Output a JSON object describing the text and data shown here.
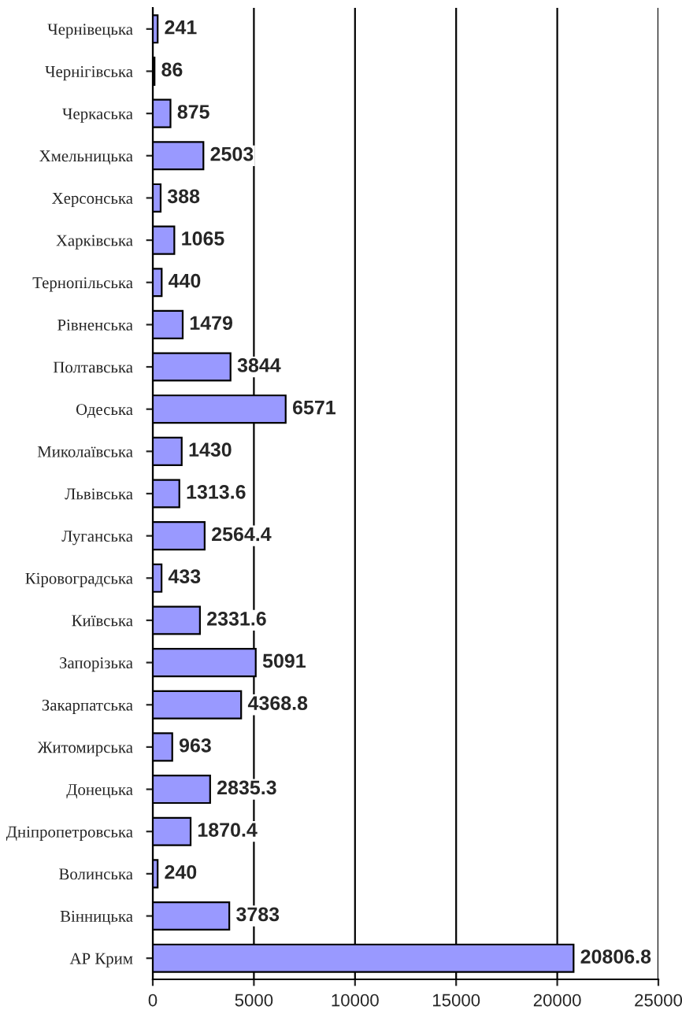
{
  "chart_data": {
    "type": "bar",
    "orientation": "horizontal",
    "categories": [
      "Чернівецька",
      "Чернігівська",
      "Черкаська",
      "Хмельницька",
      "Херсонська",
      "Харківська",
      "Тернопільська",
      "Рівненська",
      "Полтавська",
      "Одеська",
      "Миколаївська",
      "Львівська",
      "Луганська",
      "Кіровоградська",
      "Київська",
      "Запорізька",
      "Закарпатська",
      "Житомирська",
      "Донецька",
      "Дніпропетровська",
      "Волинська",
      "Вінницька",
      "АР Крим"
    ],
    "values": [
      241,
      86,
      875,
      2503,
      388,
      1065,
      440,
      1479,
      3844,
      6571,
      1430,
      1313.6,
      2564.4,
      433,
      2331.6,
      5091,
      4368.8,
      963,
      2835.3,
      1870.4,
      240,
      3783,
      20806.8
    ],
    "color": "#9999ff",
    "xlim": [
      0,
      25000
    ],
    "xticks": [
      0,
      5000,
      10000,
      15000,
      20000,
      25000
    ],
    "grid": "x",
    "data_labels": true
  }
}
